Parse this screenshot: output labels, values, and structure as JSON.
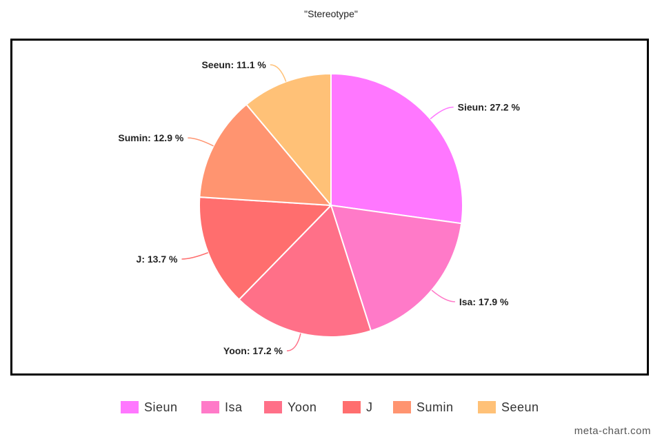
{
  "chart_data": {
    "type": "pie",
    "title": "\"Stereotype\"",
    "categories": [
      "Sieun",
      "Isa",
      "Yoon",
      "J",
      "Sumin",
      "Seeun"
    ],
    "values": [
      27.2,
      17.9,
      17.2,
      13.7,
      12.9,
      11.1
    ],
    "labels": [
      "Sieun: 27.2 %",
      "Isa: 17.9 %",
      "Yoon: 17.2 %",
      "J: 13.7 %",
      "Sumin: 12.9 %",
      "Seeun: 11.1 %"
    ],
    "colors": [
      "#ff77ff",
      "#ff7ac8",
      "#ff7088",
      "#ff6e6e",
      "#ff9470",
      "#ffc177"
    ],
    "legend_position": "bottom"
  },
  "watermark": "meta-chart.com"
}
